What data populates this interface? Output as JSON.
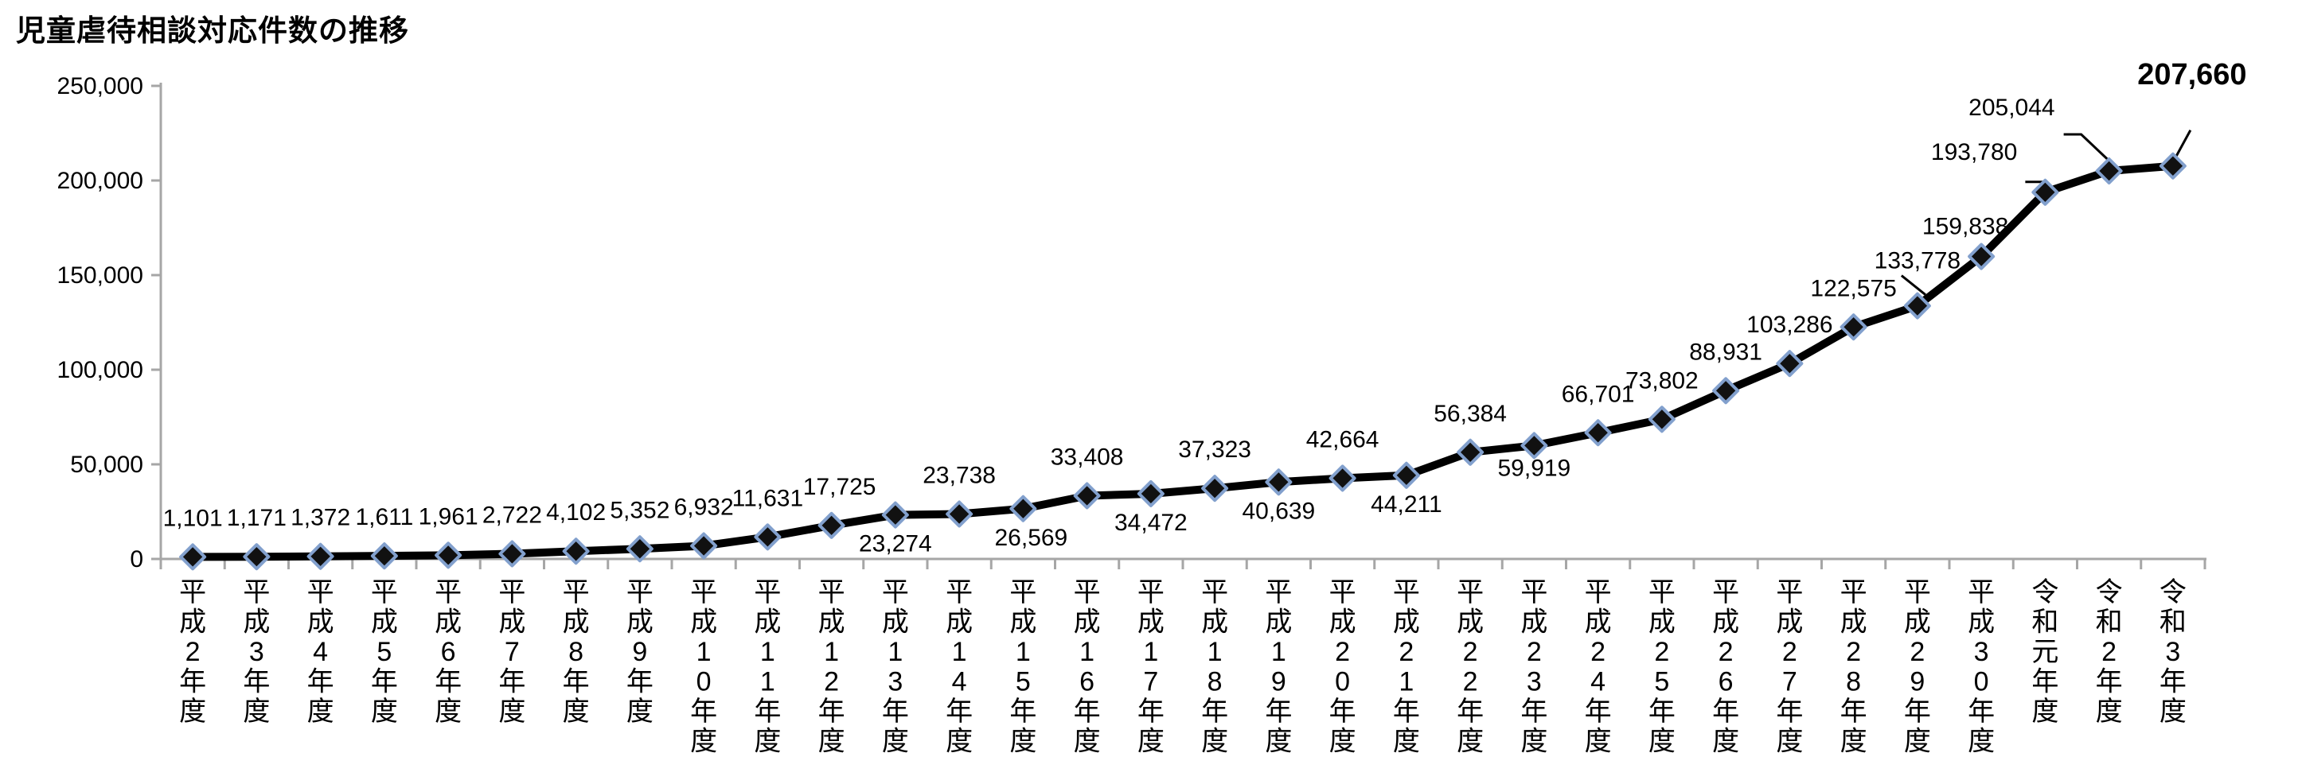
{
  "title": "児童虐待相談対応件数の推移",
  "colors": {
    "line": "#000000",
    "marker_fill": "#111111",
    "marker_stroke": "#82a0cd",
    "axis": "#a6a6a6",
    "text": "#000000",
    "background": "#ffffff"
  },
  "chart_data": {
    "type": "line",
    "title": "児童虐待相談対応件数の推移",
    "categories": [
      "平成2年度",
      "平成3年度",
      "平成4年度",
      "平成5年度",
      "平成6年度",
      "平成7年度",
      "平成8年度",
      "平成9年度",
      "平成10年度",
      "平成11年度",
      "平成12年度",
      "平成13年度",
      "平成14年度",
      "平成15年度",
      "平成16年度",
      "平成17年度",
      "平成18年度",
      "平成19年度",
      "平成20年度",
      "平成21年度",
      "平成22年度",
      "平成23年度",
      "平成24年度",
      "平成25年度",
      "平成26年度",
      "平成27年度",
      "平成28年度",
      "平成29年度",
      "平成30年度",
      "令和元年度",
      "令和2年度",
      "令和3年度"
    ],
    "values": [
      1101,
      1171,
      1372,
      1611,
      1961,
      2722,
      4102,
      5352,
      6932,
      11631,
      17725,
      23274,
      23738,
      26569,
      33408,
      34472,
      37323,
      40639,
      42664,
      44211,
      56384,
      59919,
      66701,
      73802,
      88931,
      103286,
      122575,
      133778,
      159838,
      193780,
      205044,
      207660
    ],
    "data_labels": [
      "1,101",
      "1,171",
      "1,372",
      "1,611",
      "1,961",
      "2,722",
      "4,102",
      "5,352",
      "6,932",
      "11,631",
      "17,725",
      "23,274",
      "23,738",
      "26,569",
      "33,408",
      "34,472",
      "37,323",
      "40,639",
      "42,664",
      "44,211",
      "56,384",
      "59,919",
      "66,701",
      "73,802",
      "88,931",
      "103,286",
      "122,575",
      "133,778",
      "159,838",
      "193,780",
      "205,044",
      "207,660"
    ],
    "label_sides": [
      "above",
      "above",
      "above",
      "above",
      "above",
      "above",
      "above",
      "above",
      "above",
      "above",
      "above",
      "below",
      "above",
      "below",
      "above",
      "below",
      "above",
      "below",
      "above",
      "below",
      "above",
      "below",
      "above",
      "above",
      "above",
      "above",
      "above",
      "above",
      "above",
      "above",
      "above",
      "above"
    ],
    "label_overrides": {
      "10": {
        "dx": 10
      },
      "13": {
        "dx": 10
      },
      "21": {
        "dy": -8
      },
      "27": {
        "dy": -8,
        "leader": [
          [
            -20,
            -38
          ],
          [
            10,
            -14
          ]
        ]
      },
      "28": {
        "dx": -20,
        "dy": 11
      },
      "29": {
        "anchor": "end",
        "dx": -35,
        "dy": -2,
        "leader": [
          [
            -25,
            -13
          ],
          [
            1,
            -13
          ]
        ]
      },
      "30": {
        "anchor": "end",
        "dx": -68,
        "dy": -31,
        "leader": [
          [
            -57,
            -46
          ],
          [
            -35,
            -46
          ],
          [
            3,
            -10
          ]
        ]
      },
      "31": {
        "dx": 24,
        "dy": -64,
        "bold": true,
        "size": 38,
        "leader": [
          [
            22,
            -45
          ],
          [
            4,
            -12
          ]
        ]
      }
    },
    "ylim": [
      0,
      250000
    ],
    "ytick_step": 50000,
    "ytick_labels": [
      "0",
      "50,000",
      "100,000",
      "150,000",
      "200,000",
      "250,000"
    ],
    "xlabel": "",
    "ylabel": "",
    "grid": false,
    "legend": "none",
    "marker": "diamond",
    "final_value_emphasis": "207,660"
  }
}
